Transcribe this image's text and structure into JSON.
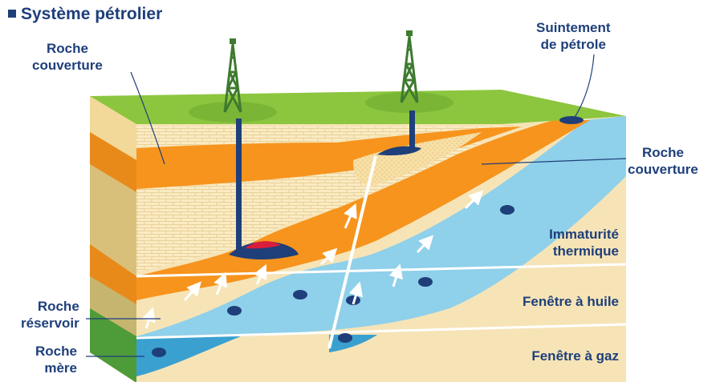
{
  "title": "Système pétrolier",
  "labels": {
    "cap_rock_left": [
      "Roche",
      "couverture"
    ],
    "oil_seep": [
      "Suintement",
      "de pétrole"
    ],
    "cap_rock_right": [
      "Roche",
      "couverture"
    ],
    "thermal_immaturity": [
      "Immaturité",
      "thermique"
    ],
    "oil_window": "Fenêtre à huile",
    "gas_window": "Fenêtre à gaz",
    "reservoir_rock": [
      "Roche",
      "réservoir"
    ],
    "source_rock": [
      "Roche",
      "mère"
    ]
  },
  "colors": {
    "text": "#1e3f7a",
    "surface": "#8cc63f",
    "orange_layer": "#f7941d",
    "sand_layer": "#f7e3b0",
    "blue_layer": "#6cc5e3",
    "gas": "#d81e3c",
    "oil": "#1e3f7a"
  },
  "icons": [
    "derrick-icon",
    "oil-drop-icon",
    "migration-arrow-icon"
  ]
}
